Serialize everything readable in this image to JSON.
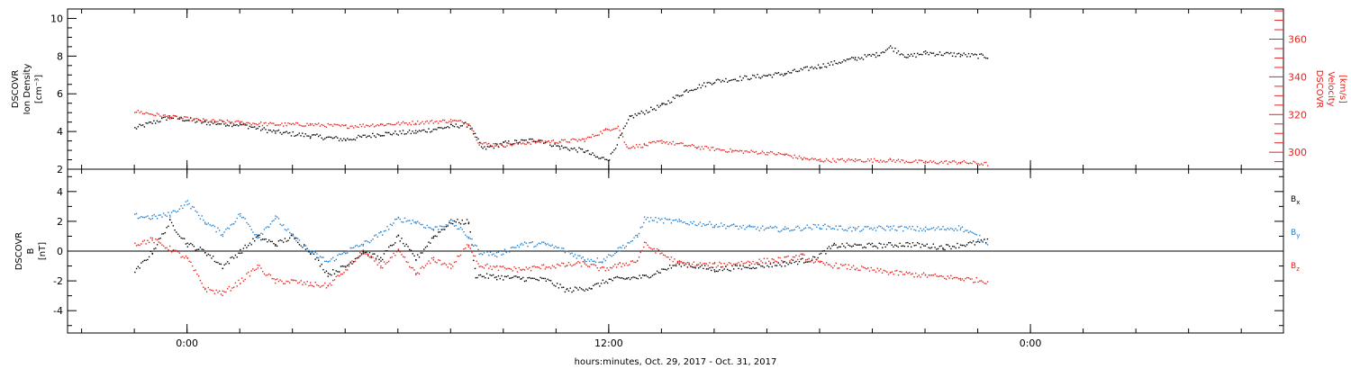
{
  "chart_data": [
    {
      "type": "scatter",
      "panel": "top",
      "ylabel_left": [
        "DSCOVR",
        "Ion Density",
        "[cm⁻³]"
      ],
      "ylabel_right": [
        "DSCOVR",
        "Velocity",
        "[km/s]"
      ],
      "ylim_left": [
        2,
        10.5
      ],
      "ylim_right": [
        291,
        376
      ],
      "yticks_left": [
        "2",
        "4",
        "6",
        "8",
        "10"
      ],
      "yticks_right": [
        "300",
        "320",
        "340",
        "360"
      ],
      "series": [
        {
          "axis": "left",
          "color": "#000000",
          "x": [
            -1.5,
            -0.5,
            0.5,
            1.5,
            2.5,
            3.5,
            4.5,
            5.5,
            6.5,
            7.5,
            8.0,
            8.4,
            9.0,
            10.0,
            10.6,
            11.3,
            11.7,
            12.0,
            12.6,
            13.5,
            14.2,
            15.0,
            16.5,
            17.0,
            18.0,
            19.0,
            19.6,
            20.0,
            20.5,
            21.0,
            22.0,
            22.8
          ],
          "y": [
            4.2,
            4.8,
            4.5,
            4.4,
            4.0,
            3.8,
            3.6,
            3.9,
            4.0,
            4.3,
            4.4,
            3.1,
            3.4,
            3.6,
            3.2,
            3.0,
            2.6,
            2.6,
            4.8,
            5.4,
            6.2,
            6.7,
            7.0,
            7.1,
            7.5,
            7.9,
            8.1,
            8.5,
            8.0,
            8.2,
            8.1,
            8.0
          ]
        },
        {
          "axis": "right",
          "color": "#e8221d",
          "x": [
            -1.5,
            -0.5,
            0.5,
            1.5,
            2.5,
            3.5,
            4.5,
            5.5,
            6.5,
            7.5,
            8.0,
            8.3,
            9.0,
            10.0,
            10.6,
            11.3,
            11.9,
            12.25,
            12.5,
            13.0,
            13.5,
            14.5,
            15.5,
            16.5,
            17.0,
            17.5,
            18.0,
            19.0,
            20.0,
            21.0,
            22.0,
            22.8
          ],
          "y": [
            322,
            319,
            317,
            316,
            315,
            315,
            314,
            315,
            316,
            317,
            316,
            305,
            304,
            306,
            306,
            307,
            312,
            314,
            303,
            304,
            306,
            303,
            301,
            300,
            299,
            297,
            296,
            296,
            296,
            295,
            295,
            294
          ]
        }
      ]
    },
    {
      "type": "scatter",
      "panel": "bottom",
      "ylabel_left": [
        "DSCOVR",
        "B",
        "[nT]"
      ],
      "ylim": [
        -5.5,
        5.5
      ],
      "yticks": [
        "-4",
        "-2",
        "0",
        "2",
        "4"
      ],
      "zero_line": true,
      "series": [
        {
          "name": "Bx",
          "legend": "B_x",
          "color": "#000000",
          "x": [
            -1.5,
            -1.0,
            -0.5,
            0.0,
            0.5,
            1.0,
            1.5,
            2.0,
            2.5,
            3.0,
            3.5,
            4.0,
            4.5,
            5.0,
            5.5,
            6.0,
            6.5,
            7.0,
            7.5,
            8.0,
            8.2,
            8.8,
            9.5,
            10.2,
            10.8,
            11.5,
            12.0,
            12.5,
            13.0,
            14.0,
            15.0,
            16.0,
            17.0,
            17.8,
            18.4,
            19.5,
            20.5,
            21.5,
            22.8
          ],
          "y": [
            -1.4,
            0.0,
            2.0,
            0.5,
            0.0,
            -1.0,
            0.0,
            1.0,
            0.5,
            1.0,
            0.0,
            -1.5,
            -1.0,
            0.0,
            -0.5,
            1.0,
            -0.5,
            1.0,
            2.0,
            2.0,
            -1.6,
            -1.7,
            -1.8,
            -1.9,
            -2.6,
            -2.4,
            -1.9,
            -1.8,
            -1.7,
            -0.8,
            -1.2,
            -1.0,
            -0.8,
            -0.5,
            0.4,
            0.4,
            0.5,
            0.3,
            0.7
          ]
        },
        {
          "name": "By",
          "legend": "B_y",
          "color": "#1f7fd0",
          "x": [
            -1.5,
            -1.0,
            -0.5,
            0.0,
            0.5,
            1.0,
            1.5,
            2.0,
            2.5,
            3.0,
            3.5,
            4.0,
            4.5,
            5.0,
            5.5,
            6.0,
            6.5,
            7.0,
            7.5,
            8.0,
            8.3,
            8.8,
            9.5,
            10.2,
            10.8,
            11.3,
            11.8,
            12.3,
            12.8,
            13.0,
            14.0,
            15.0,
            16.0,
            17.0,
            18.0,
            19.0,
            20.0,
            21.0,
            22.0,
            22.8
          ],
          "y": [
            2.4,
            2.3,
            2.5,
            3.3,
            2.0,
            1.2,
            2.5,
            1.0,
            2.3,
            1.0,
            0.0,
            -0.7,
            0.0,
            0.5,
            1.2,
            2.2,
            2.0,
            1.5,
            2.0,
            1.0,
            0.0,
            -0.2,
            0.5,
            0.5,
            0.0,
            -0.5,
            -0.6,
            0.2,
            1.0,
            2.2,
            2.0,
            1.8,
            1.6,
            1.5,
            1.7,
            1.5,
            1.6,
            1.5,
            1.6,
            0.6
          ]
        },
        {
          "name": "Bz",
          "legend": "B_z",
          "color": "#e8221d",
          "x": [
            -1.5,
            -1.0,
            -0.5,
            0.0,
            0.5,
            1.0,
            1.5,
            2.0,
            2.5,
            3.0,
            3.5,
            4.0,
            4.5,
            5.0,
            5.5,
            6.0,
            6.5,
            7.0,
            7.5,
            8.0,
            8.3,
            8.8,
            9.5,
            10.2,
            10.8,
            11.3,
            11.8,
            12.3,
            12.8,
            13.0,
            14.0,
            15.0,
            16.0,
            17.0,
            17.5,
            18.0,
            19.0,
            20.0,
            21.0,
            22.0,
            22.8
          ],
          "y": [
            0.5,
            0.8,
            0.2,
            -0.5,
            -2.5,
            -2.8,
            -2.0,
            -1.0,
            -2.0,
            -2.0,
            -2.2,
            -2.3,
            -1.2,
            0.0,
            -1.0,
            0.0,
            -1.5,
            -0.5,
            -1.0,
            0.5,
            -0.9,
            -1.1,
            -1.2,
            -1.0,
            -0.9,
            -0.8,
            -1.2,
            -0.9,
            -0.6,
            0.5,
            -0.8,
            -0.9,
            -0.7,
            -0.5,
            -0.3,
            -0.8,
            -1.1,
            -1.4,
            -1.6,
            -1.8,
            -2.0
          ]
        }
      ]
    }
  ],
  "x_axis": {
    "range_hours": [
      -3.4,
      31.2
    ],
    "ticks": [
      {
        "h": 0,
        "label": "0:00"
      },
      {
        "h": 12,
        "label": "12:00"
      },
      {
        "h": 24,
        "label": "0:00"
      }
    ],
    "minor_step_hours": 1.5,
    "xlabel": "hours:minutes, Oct. 29, 2017 - Oct. 31, 2017"
  }
}
